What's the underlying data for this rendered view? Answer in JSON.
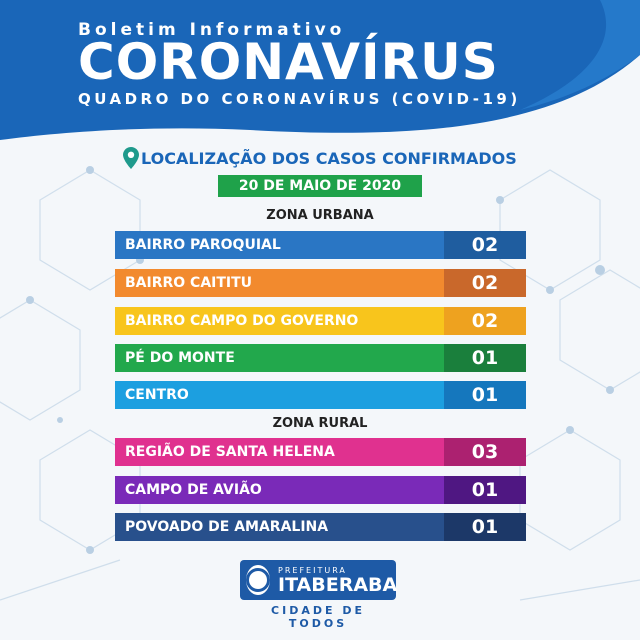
{
  "header": {
    "line1": "Boletim Informativo",
    "line2": "CORONAVÍRUS",
    "line3": "QUADRO DO CORONAVÍRUS (COVID-19)"
  },
  "location_title": "LOCALIZAÇÃO DOS CASOS CONFIRMADOS",
  "date": "20 DE MAIO DE 2020",
  "zones": {
    "urban": {
      "label": "ZONA URBANA",
      "rows": [
        {
          "name": "BAIRRO PAROQUIAL",
          "count": "02",
          "color": "#2a76c4",
          "count_color": "#1f5d9f"
        },
        {
          "name": "BAIRRO CAITITU",
          "count": "02",
          "color": "#f28a2e",
          "count_color": "#c9682b"
        },
        {
          "name": "BAIRRO CAMPO DO GOVERNO",
          "count": "02",
          "color": "#f8c51c",
          "count_color": "#eea21f"
        },
        {
          "name": "PÉ DO MONTE",
          "count": "01",
          "color": "#22a84c",
          "count_color": "#1a7f3c"
        },
        {
          "name": "CENTRO",
          "count": "01",
          "color": "#1c9fe0",
          "count_color": "#1577bd"
        }
      ]
    },
    "rural": {
      "label": "ZONA RURAL",
      "rows": [
        {
          "name": "REGIÃO DE SANTA HELENA",
          "count": "03",
          "color": "#e0318f",
          "count_color": "#ac2170"
        },
        {
          "name": "CAMPO DE AVIÃO",
          "count": "01",
          "color": "#7a2ab8",
          "count_color": "#4f1782"
        },
        {
          "name": "POVOADO DE AMARALINA",
          "count": "01",
          "color": "#28508c",
          "count_color": "#1c3868"
        }
      ]
    }
  },
  "logo": {
    "top": "PREFEITURA",
    "main": "ITABERABA",
    "sub": "CIDADE DE TODOS"
  },
  "icons": {
    "location": "map-pin-icon",
    "emblem": "city-emblem-icon"
  },
  "colors": {
    "header_blue": "#1a66b8",
    "date_green": "#1fa24a"
  }
}
